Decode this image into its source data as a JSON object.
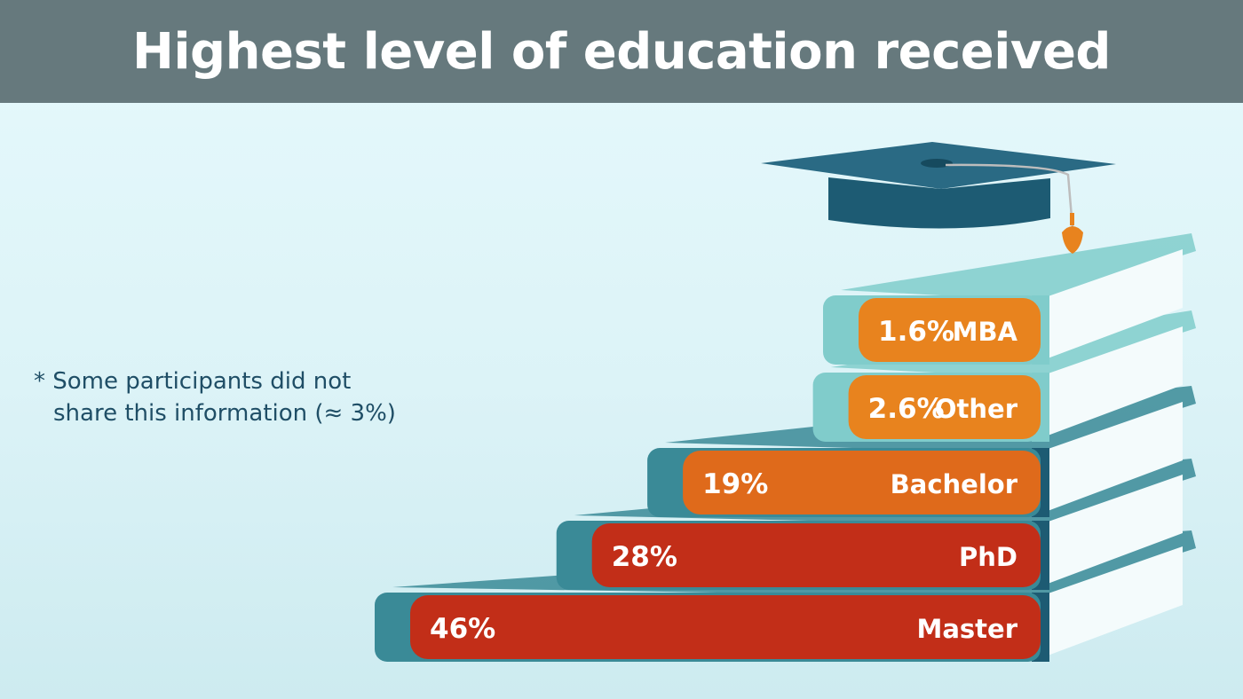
{
  "title": "Highest level of education received",
  "footnote": {
    "line1": "* Some participants did not",
    "line2": "share this information (≈ 3%)"
  },
  "colors": {
    "header_bg": "#66797d",
    "orange_light": "#e8831e",
    "orange": "#df6a1b",
    "red": "#c22e18",
    "teal_light": "#80cccb",
    "teal": "#3a8a97",
    "teal_dark": "#1d5b73",
    "page_bg": "#e6f9fc"
  },
  "icons": {
    "graduation_cap": "graduation-cap-icon"
  },
  "chart_data": {
    "type": "bar",
    "orientation": "horizontal",
    "title": "Highest level of education received",
    "categories": [
      "MBA",
      "Other",
      "Bachelor",
      "PhD",
      "Master"
    ],
    "value_labels": [
      "1.6%",
      "2.6%",
      "19%",
      "28%",
      "46%"
    ],
    "values": [
      1.6,
      2.6,
      19,
      28,
      46
    ],
    "unit": "%",
    "note": "* Some participants did not share this information (≈ 3%)"
  }
}
